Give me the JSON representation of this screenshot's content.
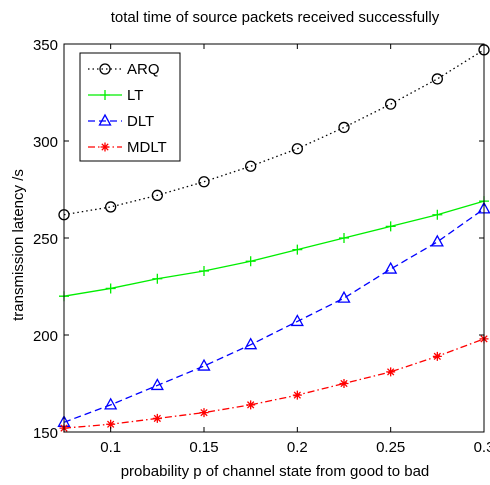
{
  "chart_data": {
    "type": "line",
    "title": "total time of source packets received successfully",
    "xlabel": "probability p of channel state from good to bad",
    "ylabel": "transmission latency /s",
    "xlim": [
      0.075,
      0.3
    ],
    "ylim": [
      150,
      350
    ],
    "x_ticks": [
      0.1,
      0.15,
      0.2,
      0.25,
      0.3
    ],
    "x_tick_labels": [
      "0.1",
      "0.15",
      "0.2",
      "0.25",
      "0.3"
    ],
    "y_ticks": [
      150,
      200,
      250,
      300,
      350
    ],
    "y_tick_labels": [
      "150",
      "200",
      "250",
      "300",
      "350"
    ],
    "grid": false,
    "legend_position": "top-left",
    "x": [
      0.075,
      0.1,
      0.125,
      0.15,
      0.175,
      0.2,
      0.225,
      0.25,
      0.275,
      0.3
    ],
    "series": [
      {
        "name": "ARQ",
        "values": [
          262,
          266,
          272,
          279,
          287,
          296,
          307,
          319,
          332,
          347
        ],
        "color": "#000000",
        "dash": "dotted",
        "marker": "circle"
      },
      {
        "name": "LT",
        "values": [
          220,
          224,
          229,
          233,
          238,
          244,
          250,
          256,
          262,
          269
        ],
        "color": "#00ee00",
        "dash": "solid",
        "marker": "plus"
      },
      {
        "name": "DLT",
        "values": [
          155,
          164,
          174,
          184,
          195,
          207,
          219,
          234,
          248,
          265
        ],
        "color": "#0000ff",
        "dash": "dashed",
        "marker": "triangle"
      },
      {
        "name": "MDLT",
        "values": [
          152,
          154,
          157,
          160,
          164,
          169,
          175,
          181,
          189,
          198
        ],
        "color": "#ff0000",
        "dash": "dashdot",
        "marker": "star"
      }
    ]
  }
}
